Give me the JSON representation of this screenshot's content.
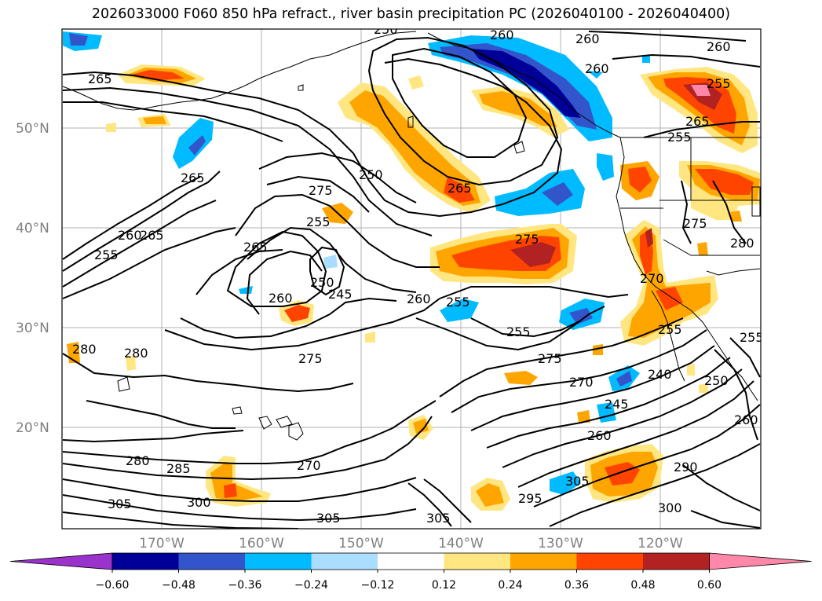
{
  "title": "2026033000 F060 850 hPa refract., river basin precipitation PC (2026040100 - 2026040400)",
  "lat_labels": [
    {
      "label": "50°N",
      "lat": 50
    },
    {
      "label": "40°N",
      "lat": 40
    },
    {
      "label": "30°N",
      "lat": 30
    },
    {
      "label": "20°N",
      "lat": 20
    }
  ],
  "lon_labels": [
    {
      "label": "170°W",
      "lon": -170
    },
    {
      "label": "160°W",
      "lon": -160
    },
    {
      "label": "150°W",
      "lon": -150
    },
    {
      "label": "140°W",
      "lon": -140
    },
    {
      "label": "130°W",
      "lon": -130
    },
    {
      "label": "120°W",
      "lon": -120
    }
  ],
  "colorbar": {
    "colors": [
      "#9933cc",
      "#000099",
      "#3355cc",
      "#00bbff",
      "#aaddff",
      "#ffffff",
      "#ffe680",
      "#ffa500",
      "#ff4400",
      "#b22222",
      "#ff88aa"
    ],
    "tick_labels": [
      "−0.60",
      "−0.48",
      "−0.36",
      "−0.24",
      "−0.12",
      "0.12",
      "0.24",
      "0.36",
      "0.48",
      "0.60"
    ]
  },
  "contour_labels": [
    "265",
    "250",
    "260",
    "260",
    "260",
    "255",
    "265",
    "260",
    "255",
    "265",
    "250",
    "265",
    "275",
    "255",
    "255",
    "260",
    "265",
    "265",
    "250",
    "245",
    "275",
    "255",
    "260",
    "255",
    "260",
    "275",
    "270",
    "270",
    "275",
    "280",
    "280",
    "240",
    "245",
    "260",
    "250",
    "260",
    "280",
    "285",
    "270",
    "300",
    "305",
    "305",
    "305",
    "295",
    "305",
    "290",
    "300",
    "275",
    "280",
    "255",
    "255"
  ]
}
